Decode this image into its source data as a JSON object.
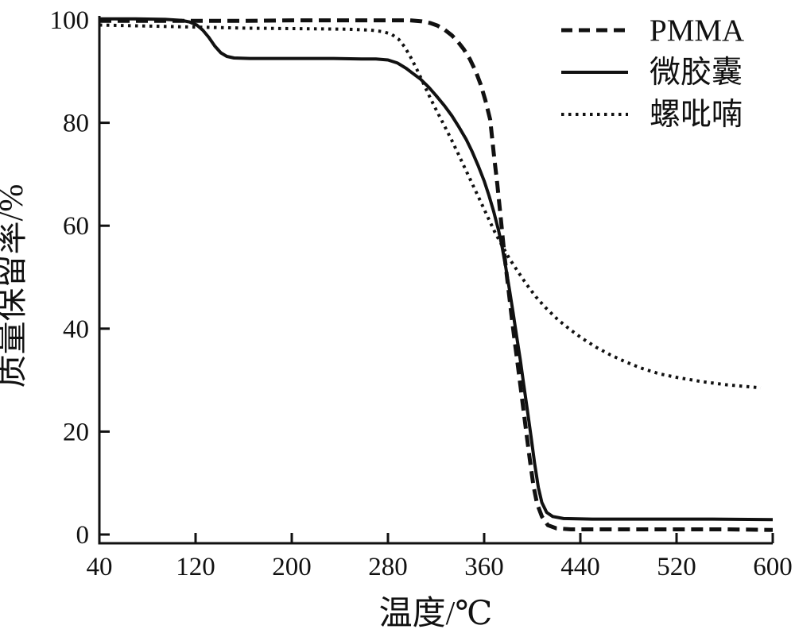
{
  "figure": {
    "background": "#ffffff",
    "ink_color": "#111111"
  },
  "chart_data": {
    "type": "line",
    "title": "",
    "xlabel": "温度/℃",
    "ylabel": "质量保留率/%",
    "xlim": [
      40,
      600
    ],
    "ylim": [
      0,
      100
    ],
    "x_ticks": [
      40,
      120,
      200,
      280,
      360,
      440,
      520,
      600
    ],
    "y_ticks": [
      0,
      20,
      40,
      60,
      80,
      100
    ],
    "grid": false,
    "legend_position": "top-right",
    "series": [
      {
        "name": "PMMA",
        "line_style": "dashed",
        "color": "#111111",
        "points": [
          [
            40,
            99.8
          ],
          [
            80,
            99.8
          ],
          [
            120,
            99.8
          ],
          [
            160,
            99.8
          ],
          [
            200,
            99.9
          ],
          [
            240,
            99.9
          ],
          [
            280,
            99.9
          ],
          [
            298,
            99.9
          ],
          [
            308,
            99.7
          ],
          [
            315,
            99.4
          ],
          [
            321,
            98.9
          ],
          [
            327,
            98.1
          ],
          [
            333,
            97.0
          ],
          [
            338,
            95.8
          ],
          [
            343,
            94.3
          ],
          [
            348,
            92.4
          ],
          [
            353,
            90.0
          ],
          [
            357,
            87.5
          ],
          [
            361,
            84.4
          ],
          [
            365,
            80.6
          ],
          [
            368,
            74.0
          ],
          [
            371,
            68.0
          ],
          [
            374,
            61.0
          ],
          [
            377,
            54.0
          ],
          [
            380,
            48.0
          ],
          [
            383,
            42.0
          ],
          [
            386,
            36.5
          ],
          [
            389,
            31.0
          ],
          [
            392,
            25.5
          ],
          [
            395,
            20.0
          ],
          [
            398,
            14.5
          ],
          [
            401,
            9.5
          ],
          [
            404,
            6.0
          ],
          [
            408,
            3.5
          ],
          [
            413,
            1.8
          ],
          [
            420,
            1.2
          ],
          [
            432,
            1.0
          ],
          [
            470,
            1.0
          ],
          [
            520,
            1.0
          ],
          [
            560,
            1.0
          ],
          [
            600,
            0.9
          ]
        ]
      },
      {
        "name": "微胶囊",
        "line_style": "solid",
        "color": "#111111",
        "points": [
          [
            40,
            100.2
          ],
          [
            70,
            100.2
          ],
          [
            95,
            100.1
          ],
          [
            108,
            99.9
          ],
          [
            115,
            99.6
          ],
          [
            121,
            99.0
          ],
          [
            126,
            98.0
          ],
          [
            131,
            96.6
          ],
          [
            136,
            94.9
          ],
          [
            141,
            93.6
          ],
          [
            146,
            92.9
          ],
          [
            152,
            92.6
          ],
          [
            165,
            92.5
          ],
          [
            185,
            92.5
          ],
          [
            210,
            92.5
          ],
          [
            235,
            92.5
          ],
          [
            258,
            92.4
          ],
          [
            270,
            92.4
          ],
          [
            280,
            92.2
          ],
          [
            288,
            91.6
          ],
          [
            295,
            90.6
          ],
          [
            300,
            89.7
          ],
          [
            307,
            88.5
          ],
          [
            314,
            86.9
          ],
          [
            320,
            85.3
          ],
          [
            327,
            83.3
          ],
          [
            333,
            81.4
          ],
          [
            339,
            79.2
          ],
          [
            345,
            76.8
          ],
          [
            350,
            74.4
          ],
          [
            355,
            71.7
          ],
          [
            360,
            68.7
          ],
          [
            364,
            65.9
          ],
          [
            368,
            62.7
          ],
          [
            372,
            59.1
          ],
          [
            375,
            55.8
          ],
          [
            378,
            51.9
          ],
          [
            381,
            47.6
          ],
          [
            384,
            43.2
          ],
          [
            387,
            38.6
          ],
          [
            390,
            34.0
          ],
          [
            393,
            29.0
          ],
          [
            396,
            24.0
          ],
          [
            399,
            19.0
          ],
          [
            402,
            13.8
          ],
          [
            405,
            9.2
          ],
          [
            408,
            6.2
          ],
          [
            412,
            4.3
          ],
          [
            417,
            3.5
          ],
          [
            426,
            3.1
          ],
          [
            450,
            3.0
          ],
          [
            500,
            3.0
          ],
          [
            550,
            3.0
          ],
          [
            600,
            2.9
          ]
        ]
      },
      {
        "name": "螺吡喃",
        "line_style": "dotted",
        "color": "#111111",
        "points": [
          [
            40,
            99.0
          ],
          [
            80,
            98.8
          ],
          [
            120,
            98.6
          ],
          [
            160,
            98.4
          ],
          [
            200,
            98.3
          ],
          [
            245,
            98.2
          ],
          [
            266,
            98.0
          ],
          [
            276,
            97.7
          ],
          [
            283,
            97.2
          ],
          [
            289,
            96.2
          ],
          [
            294,
            94.7
          ],
          [
            299,
            92.7
          ],
          [
            304,
            90.4
          ],
          [
            309,
            87.9
          ],
          [
            315,
            84.9
          ],
          [
            321,
            82.1
          ],
          [
            327,
            79.4
          ],
          [
            333,
            76.6
          ],
          [
            339,
            73.7
          ],
          [
            345,
            70.7
          ],
          [
            351,
            67.7
          ],
          [
            357,
            64.7
          ],
          [
            363,
            61.7
          ],
          [
            369,
            58.7
          ],
          [
            375,
            56.1
          ],
          [
            381,
            53.6
          ],
          [
            388,
            51.1
          ],
          [
            395,
            48.7
          ],
          [
            403,
            46.2
          ],
          [
            411,
            44.1
          ],
          [
            421,
            41.8
          ],
          [
            431,
            39.9
          ],
          [
            441,
            38.2
          ],
          [
            453,
            36.4
          ],
          [
            465,
            34.9
          ],
          [
            477,
            33.6
          ],
          [
            491,
            32.3
          ],
          [
            506,
            31.2
          ],
          [
            521,
            30.5
          ],
          [
            541,
            29.7
          ],
          [
            561,
            29.1
          ],
          [
            576,
            28.8
          ],
          [
            590,
            28.5
          ]
        ]
      }
    ]
  }
}
